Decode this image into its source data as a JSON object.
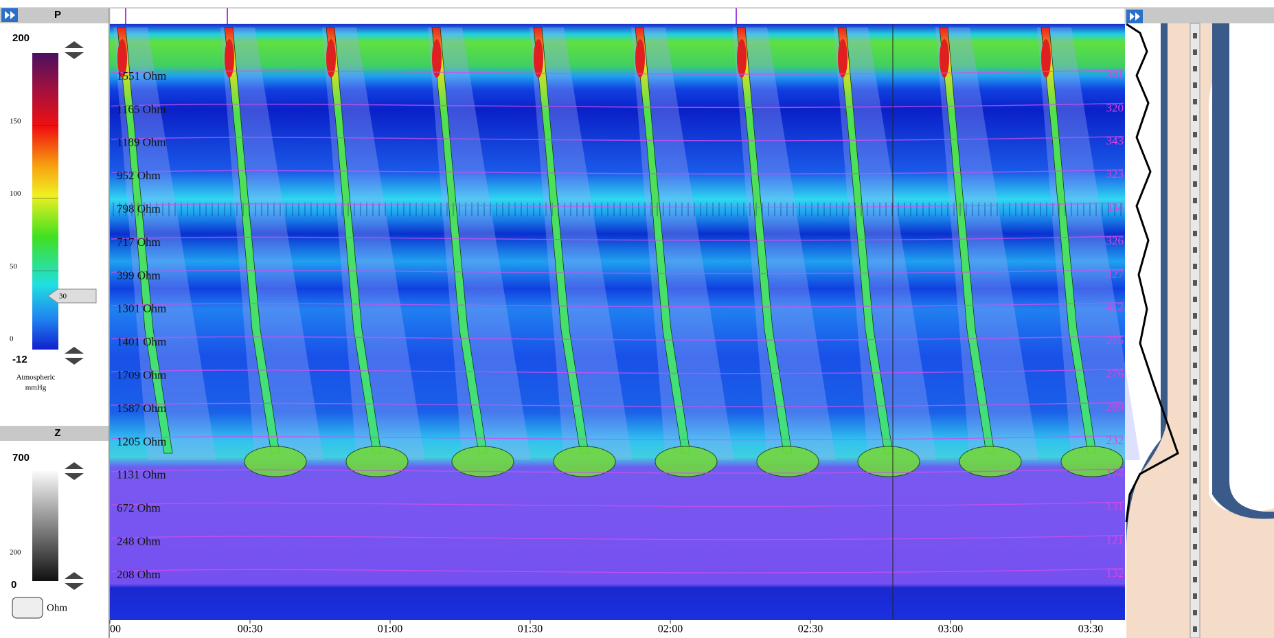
{
  "pressure_panel": {
    "header": "P",
    "max": "200",
    "ticks": [
      "150",
      "100",
      "50",
      "0"
    ],
    "min": "-12",
    "marker": "30",
    "unit": [
      "Atmospheric",
      "mmHg"
    ]
  },
  "impedance_panel": {
    "header": "Z",
    "max": "700",
    "tick": "200",
    "min": "0",
    "unit": "Ohm"
  },
  "channel_impedances": [
    "1551 Ohm",
    "1165 Ohm",
    "1189 Ohm",
    "952 Ohm",
    "798 Ohm",
    "717 Ohm",
    "399 Ohm",
    "1301 Ohm",
    "1401 Ohm",
    "1709 Ohm",
    "1587 Ohm",
    "1205 Ohm",
    "1131 Ohm",
    "672 Ohm",
    "248 Ohm",
    "208 Ohm"
  ],
  "channel_values_right": [
    "341",
    "320",
    "343",
    "323",
    "334",
    "326",
    "327",
    "412",
    "275",
    "276",
    "289",
    "232",
    "174",
    "131",
    "121",
    "132"
  ],
  "time_labels": [
    "00",
    "00:30",
    "01:00",
    "01:30",
    "02:00",
    "02:30",
    "03:00",
    "03:30"
  ]
}
